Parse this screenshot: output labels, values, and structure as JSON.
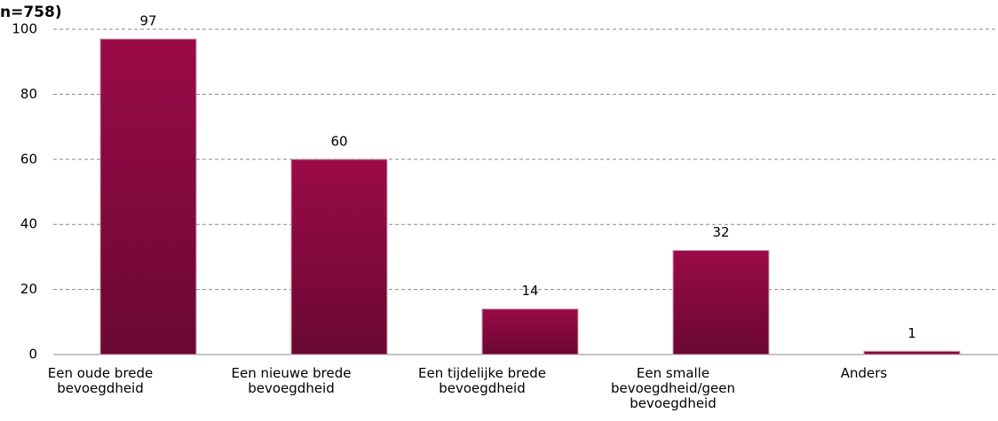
{
  "chart_data": {
    "type": "bar",
    "title": "n=758)",
    "categories": [
      "Een oude brede bevoegdheid",
      "Een nieuwe brede bevoegdheid",
      "Een tijdelijke brede bevoegdheid",
      "Een smalle bevoegdheid/geen bevoegdheid",
      "Anders"
    ],
    "values": [
      97,
      60,
      14,
      32,
      1
    ],
    "color": "#9b0a47",
    "ylim": [
      0,
      100
    ],
    "yticks": [
      0,
      20,
      40,
      60,
      80,
      100
    ],
    "grid": true
  }
}
